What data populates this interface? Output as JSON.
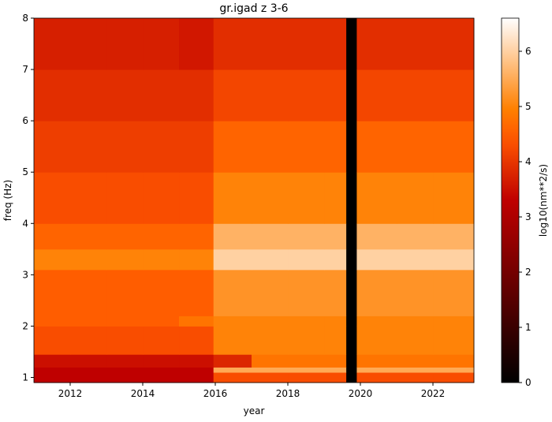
{
  "chart_data": {
    "type": "heatmap",
    "title": "gr.igad z 3-6",
    "x_label": "year",
    "y_label": "freq (Hz)",
    "colorbar_label": "log10(nm**2/s)",
    "colormap": "gist_heat",
    "xbins": [
      2011.0,
      2012,
      2013,
      2014,
      2015,
      2015.95,
      2017,
      2018,
      2019,
      2019.6,
      2019.9,
      2021,
      2022,
      2023.13
    ],
    "ybins": [
      0.9,
      1.1,
      1.2,
      1.45,
      2,
      2.2,
      3.1,
      3.5,
      4,
      5,
      6,
      7,
      8
    ],
    "values": [
      [
        3.3,
        3.3,
        3.3,
        3.3,
        3.3,
        4.3,
        4.3,
        4.3,
        4.3,
        null,
        4.3,
        4.3,
        4.3
      ],
      [
        3.3,
        3.3,
        3.3,
        3.3,
        3.3,
        5.5,
        5.5,
        5.5,
        5.5,
        null,
        5.5,
        5.5,
        5.5
      ],
      [
        3.5,
        3.5,
        3.5,
        3.5,
        3.5,
        3.8,
        4.8,
        4.8,
        4.8,
        null,
        4.8,
        4.8,
        4.8
      ],
      [
        4.3,
        4.3,
        4.3,
        4.3,
        4.3,
        5.0,
        5.0,
        5.0,
        5.0,
        null,
        5.0,
        5.0,
        5.0
      ],
      [
        4.5,
        4.5,
        4.5,
        4.5,
        4.8,
        5.0,
        5.0,
        5.0,
        5.0,
        null,
        5.0,
        5.0,
        5.0
      ],
      [
        4.5,
        4.5,
        4.5,
        4.5,
        4.5,
        5.2,
        5.2,
        5.2,
        5.2,
        null,
        5.2,
        5.2,
        5.2
      ],
      [
        5.0,
        5.0,
        5.0,
        5.0,
        5.0,
        6.0,
        6.0,
        6.0,
        6.0,
        null,
        6.0,
        6.0,
        6.0
      ],
      [
        4.6,
        4.6,
        4.6,
        4.6,
        4.6,
        5.6,
        5.6,
        5.6,
        5.6,
        null,
        5.6,
        5.6,
        5.6
      ],
      [
        4.3,
        4.3,
        4.3,
        4.3,
        4.3,
        5.0,
        5.0,
        5.0,
        5.0,
        null,
        5.0,
        5.0,
        5.0
      ],
      [
        4.1,
        4.1,
        4.1,
        4.1,
        4.1,
        4.6,
        4.6,
        4.6,
        4.6,
        null,
        4.6,
        4.6,
        4.6
      ],
      [
        3.9,
        3.9,
        3.9,
        3.9,
        3.9,
        4.2,
        4.2,
        4.2,
        4.2,
        null,
        4.2,
        4.2,
        4.2
      ],
      [
        3.7,
        3.7,
        3.7,
        3.7,
        3.6,
        3.9,
        3.9,
        3.9,
        3.9,
        null,
        3.9,
        3.9,
        3.9
      ]
    ],
    "xlim": [
      2011.0,
      2023.13
    ],
    "ylim": [
      0.9,
      8
    ],
    "xticks": [
      2012,
      2014,
      2016,
      2018,
      2020,
      2022
    ],
    "yticks": [
      1,
      2,
      3,
      4,
      5,
      6,
      7,
      8
    ],
    "clim": [
      0,
      6.6
    ],
    "cticks": [
      0,
      1,
      2,
      3,
      4,
      5,
      6
    ]
  }
}
